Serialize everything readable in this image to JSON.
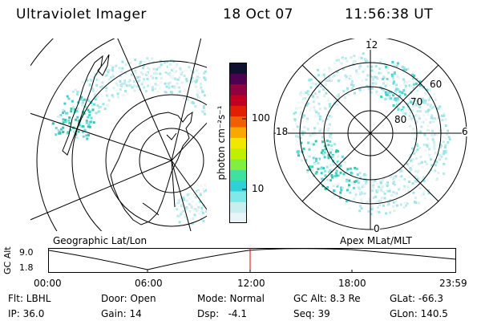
{
  "header": {
    "instrument": "Ultraviolet Imager",
    "date": "18 Oct 07",
    "time": "11:56:38 UT"
  },
  "panels": {
    "left_label": "Geographic Lat/Lon",
    "right_label": "Apex MLat/MLT"
  },
  "polar_labels": {
    "mlt_12": "12",
    "mlt_18": "18",
    "mlt_6": "6",
    "mlt_0": "0",
    "lat_60": "60",
    "lat_70": "70",
    "lat_80": "80"
  },
  "colorbar": {
    "title": "photon cm⁻²s⁻¹",
    "tick_100": "100",
    "tick_10": "10",
    "colors": [
      "#e8f4f8",
      "#c8eef0",
      "#80e8e8",
      "#30d0d8",
      "#40e0a0",
      "#80f040",
      "#c0f000",
      "#f0e800",
      "#f8a800",
      "#f06000",
      "#e02000",
      "#c00020",
      "#900040",
      "#500050",
      "#101030"
    ]
  },
  "timeline": {
    "ylabel": "GC Alt",
    "y_top": "9.0",
    "y_bottom": "1.8",
    "x_ticks": [
      "00:00",
      "06:00",
      "12:00",
      "18:00",
      "23:59"
    ],
    "marker_color": "#e00000"
  },
  "status": {
    "flt": "Flt: LBHL",
    "door": "Door: Open",
    "mode": "Mode: Normal",
    "gc_alt": "GC Alt: 8.3 Re",
    "glat": "GLat: -66.3",
    "ip": "IP: 36.0",
    "gain": "Gain: 14",
    "dsp": "Dsp:   -4.1",
    "seq": "Seq: 39",
    "glon": "GLon: 140.5"
  }
}
